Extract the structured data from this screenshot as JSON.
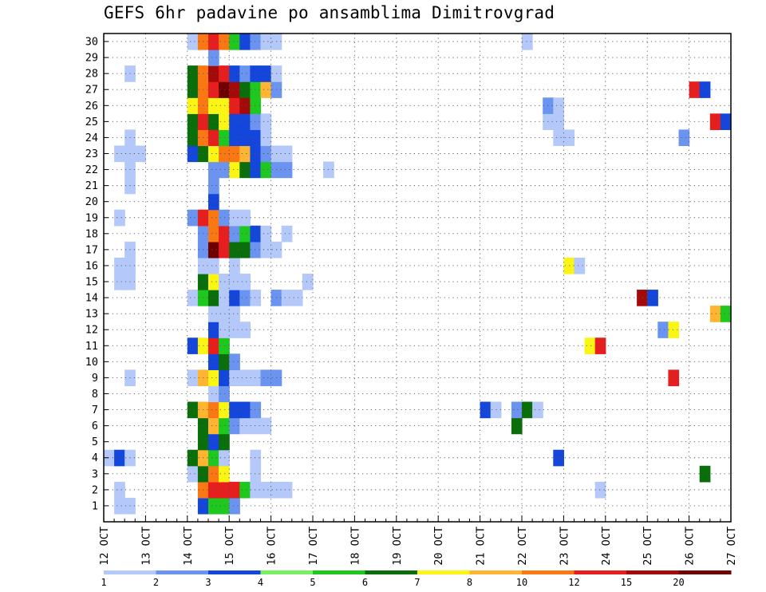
{
  "title": "GEFS 6hr padavine po ansamblima Dimitrovgrad",
  "chart_data": {
    "type": "heatmap",
    "title": "GEFS 6hr padavine po ansamblima Dimitrovgrad",
    "xlabel": "",
    "ylabel": "",
    "x_tick_labels": [
      "12 OCT",
      "13 OCT",
      "14 OCT",
      "15 OCT",
      "16 OCT",
      "17 OCT",
      "18 OCT",
      "19 OCT",
      "20 OCT",
      "21 OCT",
      "22 OCT",
      "23 OCT",
      "24 OCT",
      "25 OCT",
      "26 OCT",
      "27 OCT"
    ],
    "y_tick_labels": [
      "1",
      "2",
      "3",
      "4",
      "5",
      "6",
      "7",
      "8",
      "9",
      "10",
      "11",
      "12",
      "13",
      "14",
      "15",
      "16",
      "17",
      "18",
      "19",
      "20",
      "21",
      "22",
      "23",
      "24",
      "25",
      "26",
      "27",
      "28",
      "29",
      "30"
    ],
    "x_range": [
      "12 OCT 00Z",
      "27 OCT 00Z"
    ],
    "step_hours": 6,
    "y_range": [
      0,
      30
    ],
    "grid": true,
    "colorbar": {
      "labels": [
        "1",
        "2",
        "3",
        "4",
        "5",
        "6",
        "7",
        "8",
        "10",
        "12",
        "15",
        "20"
      ],
      "colors": [
        "#b4c8fa",
        "#6a94f0",
        "#1446dc",
        "#78f064",
        "#1ec81e",
        "#0a6e0a",
        "#faf514",
        "#ffb432",
        "#fa7814",
        "#e61e1e",
        "#a50a0a",
        "#6e0000"
      ]
    },
    "cells": [
      [
        1,
        0,
        1
      ],
      [
        2,
        0,
        1
      ],
      [
        9,
        0,
        3
      ],
      [
        10,
        0,
        5
      ],
      [
        11,
        0,
        5
      ],
      [
        12,
        0,
        2
      ],
      [
        1,
        1,
        1
      ],
      [
        9,
        1,
        9
      ],
      [
        10,
        1,
        10
      ],
      [
        11,
        1,
        10
      ],
      [
        12,
        1,
        10
      ],
      [
        13,
        1,
        5
      ],
      [
        14,
        1,
        1
      ],
      [
        15,
        1,
        1
      ],
      [
        16,
        1,
        1
      ],
      [
        17,
        1,
        1
      ],
      [
        47,
        1,
        1
      ],
      [
        8,
        2,
        1
      ],
      [
        9,
        2,
        6
      ],
      [
        10,
        2,
        9
      ],
      [
        11,
        2,
        7
      ],
      [
        14,
        2,
        1
      ],
      [
        57,
        2,
        6
      ],
      [
        0,
        3,
        1
      ],
      [
        1,
        3,
        3
      ],
      [
        2,
        3,
        1
      ],
      [
        8,
        3,
        6
      ],
      [
        9,
        3,
        8
      ],
      [
        10,
        3,
        5
      ],
      [
        11,
        3,
        1
      ],
      [
        14,
        3,
        1
      ],
      [
        43,
        3,
        3
      ],
      [
        9,
        4,
        6
      ],
      [
        10,
        4,
        3
      ],
      [
        11,
        4,
        6
      ],
      [
        9,
        5,
        6
      ],
      [
        10,
        5,
        8
      ],
      [
        11,
        5,
        5
      ],
      [
        12,
        5,
        2
      ],
      [
        13,
        5,
        1
      ],
      [
        14,
        5,
        1
      ],
      [
        15,
        5,
        1
      ],
      [
        39,
        5,
        6
      ],
      [
        8,
        6,
        6
      ],
      [
        9,
        6,
        8
      ],
      [
        10,
        6,
        9
      ],
      [
        11,
        6,
        7
      ],
      [
        12,
        6,
        3
      ],
      [
        13,
        6,
        3
      ],
      [
        14,
        6,
        2
      ],
      [
        36,
        6,
        3
      ],
      [
        37,
        6,
        1
      ],
      [
        39,
        6,
        2
      ],
      [
        40,
        6,
        6
      ],
      [
        41,
        6,
        1
      ],
      [
        10,
        7,
        1
      ],
      [
        11,
        7,
        2
      ],
      [
        2,
        8,
        1
      ],
      [
        8,
        8,
        1
      ],
      [
        9,
        8,
        8
      ],
      [
        10,
        8,
        7
      ],
      [
        11,
        8,
        3
      ],
      [
        12,
        8,
        1
      ],
      [
        13,
        8,
        1
      ],
      [
        14,
        8,
        1
      ],
      [
        15,
        8,
        2
      ],
      [
        16,
        8,
        2
      ],
      [
        54,
        8,
        10
      ],
      [
        10,
        9,
        3
      ],
      [
        11,
        9,
        6
      ],
      [
        12,
        9,
        2
      ],
      [
        8,
        10,
        3
      ],
      [
        9,
        10,
        7
      ],
      [
        10,
        10,
        10
      ],
      [
        11,
        10,
        5
      ],
      [
        46,
        10,
        7
      ],
      [
        47,
        10,
        10
      ],
      [
        10,
        11,
        3
      ],
      [
        11,
        11,
        1
      ],
      [
        12,
        11,
        1
      ],
      [
        13,
        11,
        1
      ],
      [
        53,
        11,
        2
      ],
      [
        54,
        11,
        7
      ],
      [
        10,
        12,
        1
      ],
      [
        11,
        12,
        1
      ],
      [
        12,
        12,
        1
      ],
      [
        58,
        12,
        8
      ],
      [
        59,
        12,
        5
      ],
      [
        8,
        13,
        1
      ],
      [
        9,
        13,
        5
      ],
      [
        10,
        13,
        6
      ],
      [
        11,
        13,
        1
      ],
      [
        12,
        13,
        3
      ],
      [
        13,
        13,
        2
      ],
      [
        14,
        13,
        1
      ],
      [
        16,
        13,
        2
      ],
      [
        17,
        13,
        1
      ],
      [
        18,
        13,
        1
      ],
      [
        51,
        13,
        11
      ],
      [
        52,
        13,
        3
      ],
      [
        1,
        14,
        1
      ],
      [
        2,
        14,
        1
      ],
      [
        9,
        14,
        6
      ],
      [
        10,
        14,
        7
      ],
      [
        11,
        14,
        1
      ],
      [
        12,
        14,
        1
      ],
      [
        13,
        14,
        1
      ],
      [
        19,
        14,
        1
      ],
      [
        1,
        15,
        1
      ],
      [
        2,
        15,
        1
      ],
      [
        9,
        15,
        1
      ],
      [
        10,
        15,
        1
      ],
      [
        12,
        15,
        1
      ],
      [
        44,
        15,
        7
      ],
      [
        45,
        15,
        1
      ],
      [
        2,
        16,
        1
      ],
      [
        9,
        16,
        2
      ],
      [
        10,
        16,
        12
      ],
      [
        11,
        16,
        10
      ],
      [
        12,
        16,
        6
      ],
      [
        13,
        16,
        6
      ],
      [
        14,
        16,
        2
      ],
      [
        15,
        16,
        1
      ],
      [
        16,
        16,
        1
      ],
      [
        9,
        17,
        2
      ],
      [
        10,
        17,
        9
      ],
      [
        11,
        17,
        10
      ],
      [
        12,
        17,
        2
      ],
      [
        13,
        17,
        5
      ],
      [
        14,
        17,
        3
      ],
      [
        15,
        17,
        1
      ],
      [
        17,
        17,
        1
      ],
      [
        1,
        18,
        1
      ],
      [
        8,
        18,
        2
      ],
      [
        9,
        18,
        10
      ],
      [
        10,
        18,
        9
      ],
      [
        11,
        18,
        2
      ],
      [
        12,
        18,
        1
      ],
      [
        13,
        18,
        1
      ],
      [
        10,
        19,
        3
      ],
      [
        2,
        20,
        1
      ],
      [
        10,
        20,
        2
      ],
      [
        2,
        21,
        1
      ],
      [
        10,
        21,
        2
      ],
      [
        11,
        21,
        2
      ],
      [
        12,
        21,
        7
      ],
      [
        13,
        21,
        6
      ],
      [
        14,
        21,
        3
      ],
      [
        15,
        21,
        5
      ],
      [
        16,
        21,
        2
      ],
      [
        17,
        21,
        2
      ],
      [
        21,
        21,
        1
      ],
      [
        1,
        22,
        1
      ],
      [
        2,
        22,
        1
      ],
      [
        3,
        22,
        1
      ],
      [
        8,
        22,
        3
      ],
      [
        9,
        22,
        6
      ],
      [
        10,
        22,
        7
      ],
      [
        11,
        22,
        9
      ],
      [
        12,
        22,
        9
      ],
      [
        13,
        22,
        8
      ],
      [
        14,
        22,
        3
      ],
      [
        15,
        22,
        2
      ],
      [
        16,
        22,
        1
      ],
      [
        17,
        22,
        1
      ],
      [
        2,
        23,
        1
      ],
      [
        8,
        23,
        6
      ],
      [
        9,
        23,
        9
      ],
      [
        10,
        23,
        10
      ],
      [
        11,
        23,
        5
      ],
      [
        12,
        23,
        3
      ],
      [
        13,
        23,
        3
      ],
      [
        14,
        23,
        3
      ],
      [
        15,
        23,
        1
      ],
      [
        43,
        23,
        1
      ],
      [
        44,
        23,
        1
      ],
      [
        55,
        23,
        2
      ],
      [
        8,
        24,
        6
      ],
      [
        9,
        24,
        10
      ],
      [
        10,
        24,
        6
      ],
      [
        11,
        24,
        7
      ],
      [
        12,
        24,
        3
      ],
      [
        13,
        24,
        3
      ],
      [
        14,
        24,
        2
      ],
      [
        15,
        24,
        1
      ],
      [
        42,
        24,
        1
      ],
      [
        43,
        24,
        1
      ],
      [
        58,
        24,
        10
      ],
      [
        59,
        24,
        3
      ],
      [
        8,
        25,
        7
      ],
      [
        9,
        25,
        9
      ],
      [
        10,
        25,
        7
      ],
      [
        11,
        25,
        7
      ],
      [
        12,
        25,
        10
      ],
      [
        13,
        25,
        11
      ],
      [
        14,
        25,
        5
      ],
      [
        42,
        25,
        2
      ],
      [
        43,
        25,
        1
      ],
      [
        8,
        26,
        6
      ],
      [
        9,
        26,
        9
      ],
      [
        10,
        26,
        10
      ],
      [
        11,
        26,
        12
      ],
      [
        12,
        26,
        11
      ],
      [
        13,
        26,
        6
      ],
      [
        14,
        26,
        5
      ],
      [
        15,
        26,
        8
      ],
      [
        16,
        26,
        2
      ],
      [
        56,
        26,
        10
      ],
      [
        57,
        26,
        3
      ],
      [
        2,
        27,
        1
      ],
      [
        8,
        27,
        6
      ],
      [
        9,
        27,
        9
      ],
      [
        10,
        27,
        11
      ],
      [
        11,
        27,
        10
      ],
      [
        12,
        27,
        3
      ],
      [
        13,
        27,
        2
      ],
      [
        14,
        27,
        3
      ],
      [
        15,
        27,
        3
      ],
      [
        16,
        27,
        1
      ],
      [
        10,
        28,
        2
      ],
      [
        8,
        29,
        1
      ],
      [
        9,
        29,
        9
      ],
      [
        10,
        29,
        10
      ],
      [
        11,
        29,
        9
      ],
      [
        12,
        29,
        5
      ],
      [
        13,
        29,
        3
      ],
      [
        14,
        29,
        2
      ],
      [
        15,
        29,
        1
      ],
      [
        16,
        29,
        1
      ],
      [
        40,
        29,
        1
      ]
    ]
  }
}
